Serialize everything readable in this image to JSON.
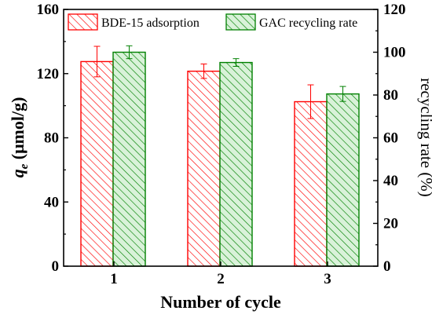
{
  "chart_data": {
    "type": "bar",
    "categories": [
      "1",
      "2",
      "3"
    ],
    "xlabel": "Number of cycle",
    "ylabel_left": {
      "base": "q",
      "sub": "e",
      "rest": " (μmol/g)"
    },
    "ylabel_right": "recycling rate (%)",
    "ylim_left": [
      0,
      160
    ],
    "yticks_left": [
      0,
      40,
      80,
      120,
      160
    ],
    "ylim_right": [
      0,
      120
    ],
    "yticks_right": [
      0,
      20,
      40,
      60,
      80,
      100,
      120
    ],
    "legend_position": "top",
    "grid": false,
    "series": [
      {
        "name": "BDE-15 adsorption",
        "axis": "left",
        "values": [
          127.5,
          121.5,
          102.5
        ],
        "errors": [
          9.5,
          4.5,
          10.5
        ],
        "color": "#ff0000"
      },
      {
        "name": "GAC recycling rate",
        "axis": "right",
        "values": [
          100.0,
          95.2,
          80.5
        ],
        "errors": [
          3.0,
          1.8,
          3.5
        ],
        "color": "#008000"
      }
    ]
  }
}
